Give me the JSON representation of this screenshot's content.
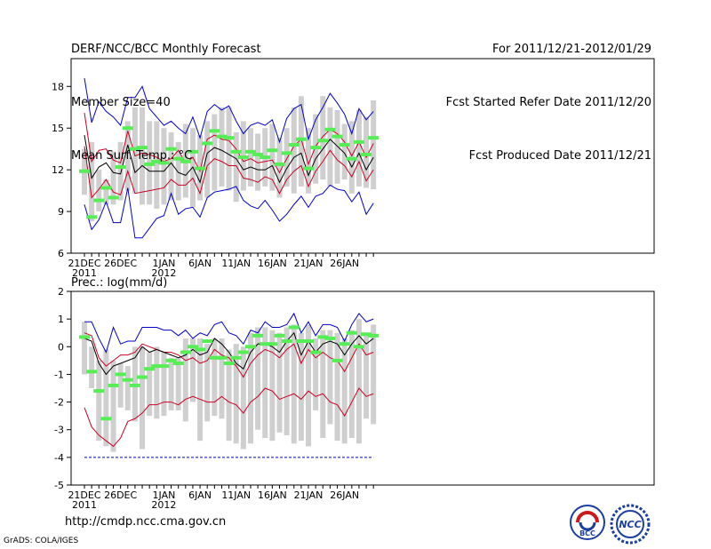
{
  "header": {
    "title": "DERF/NCC/BCC Monthly Forecast",
    "member": "Member Size=40",
    "variable": "Mean Surf. Temp.: °C",
    "period": "For 2011/12/21-2012/01/29",
    "start_date": "Fcst Started Refer Date 2011/12/20",
    "produced_date": "Fcst Produced Date 2011/12/21"
  },
  "footer": {
    "url": "http://cmdp.ncc.cma.gov.cn",
    "credit": "GrADS: COLA/IGES",
    "logo_left_text": "BCC",
    "logo_right_text": "NCC"
  },
  "colors": {
    "max_min": "#0000cc",
    "upper_lower": "#cc0022",
    "mean": "#000000",
    "spread": "#cfcfcf",
    "observed": "#55ee55"
  },
  "chart_data": [
    {
      "type": "box-plume",
      "title": "Mean Surf. Temp.: °C",
      "ylim": [
        6,
        20
      ],
      "yticks": [
        6,
        9,
        12,
        15,
        18
      ],
      "xtick_labels": [
        {
          "day": 1,
          "label": "21DEC",
          "sub": "2011"
        },
        {
          "day": 6,
          "label": "26DEC",
          "sub": ""
        },
        {
          "day": 12,
          "label": "1JAN",
          "sub": "2012"
        },
        {
          "day": 17,
          "label": "6JAN",
          "sub": ""
        },
        {
          "day": 22,
          "label": "11JAN",
          "sub": ""
        },
        {
          "day": 27,
          "label": "16JAN",
          "sub": ""
        },
        {
          "day": 32,
          "label": "21JAN",
          "sub": ""
        },
        {
          "day": 37,
          "label": "26JAN",
          "sub": ""
        }
      ],
      "days": 40,
      "series": {
        "max": [
          18.6,
          15.4,
          16.9,
          16.2,
          15.8,
          15.2,
          17.2,
          17.2,
          18,
          16.4,
          15.8,
          15.2,
          15.5,
          15,
          14.6,
          15.8,
          14.3,
          16.2,
          16.7,
          16.3,
          16.6,
          15.5,
          14.6,
          15.2,
          15.4,
          15.2,
          15.6,
          14,
          15.7,
          16.4,
          16.7,
          14.2,
          15.6,
          16.5,
          17.5,
          16.8,
          16,
          14.6,
          16.4,
          15.6,
          16.2
        ],
        "upper": [
          16.1,
          12.6,
          13.4,
          13.5,
          12.7,
          12.5,
          14.8,
          13,
          13.2,
          13.1,
          12.9,
          12.6,
          12.8,
          13.4,
          12.5,
          12.9,
          11.9,
          14.2,
          14.5,
          14.2,
          14.1,
          13.5,
          12.6,
          12.8,
          12.5,
          12.6,
          12.7,
          11.8,
          12.8,
          13.7,
          14.2,
          12.4,
          13.7,
          14.4,
          14.9,
          14.6,
          14,
          13,
          14,
          12.9,
          13.9
        ],
        "mean": [
          14.5,
          11.4,
          12.2,
          12.5,
          11.8,
          11.7,
          13.8,
          11.8,
          12.3,
          11.9,
          11.9,
          11.9,
          12.5,
          11.8,
          11.6,
          12.2,
          11.1,
          13.2,
          13.6,
          13.4,
          13.1,
          12.8,
          12,
          12.2,
          12,
          12,
          12.3,
          11.1,
          12.1,
          12.9,
          13.2,
          11.6,
          12.8,
          13.5,
          14.2,
          13.7,
          13.2,
          12.2,
          13.2,
          12,
          12.9
        ],
        "lower": [
          13.7,
          10,
          10.6,
          11.3,
          10.4,
          10.2,
          11.9,
          10.3,
          10.4,
          10.5,
          10.6,
          10.7,
          11.3,
          10.9,
          10.9,
          11.4,
          10.3,
          12.3,
          12.8,
          12.6,
          12.3,
          12.3,
          11.4,
          11.3,
          11.1,
          11.5,
          11.3,
          10.3,
          11.3,
          11.9,
          12.3,
          10.8,
          11.9,
          12.6,
          13.4,
          12.7,
          12.3,
          11.5,
          12.6,
          11.2,
          12
        ],
        "min": [
          9.5,
          7.7,
          8.4,
          9.7,
          8.2,
          8.2,
          10.7,
          7.1,
          7.1,
          7.8,
          8.5,
          8.7,
          10.3,
          8.8,
          9.2,
          9.3,
          8.6,
          10,
          10.4,
          10.5,
          10.6,
          10.8,
          9.8,
          9.4,
          9.2,
          9.8,
          9.1,
          8.3,
          8.8,
          9.5,
          10.1,
          9.3,
          10.1,
          10.3,
          10.9,
          10.6,
          10.5,
          9.7,
          10.4,
          8.8,
          9.6
        ],
        "spread_low": [
          10.2,
          8.3,
          9,
          9.5,
          9.5,
          9.8,
          10.5,
          10.3,
          9.5,
          9.5,
          9.2,
          9.5,
          9.8,
          9.8,
          10,
          9.3,
          9.8,
          10,
          10.5,
          10.8,
          10.5,
          9.7,
          10.5,
          10.8,
          10.5,
          10.8,
          10.5,
          10,
          10.8,
          10.3,
          10.8,
          10.3,
          11,
          11.3,
          10.8,
          11,
          11.3,
          10.3,
          10.8,
          10.7,
          10.6
        ],
        "spread_high": [
          13.5,
          14,
          12,
          11.3,
          13.3,
          14,
          15.5,
          16.5,
          16.5,
          15.5,
          15.5,
          15,
          14.7,
          14,
          15.3,
          15,
          14.5,
          15.5,
          16,
          16.5,
          16.5,
          14.7,
          15.5,
          15,
          14.6,
          15,
          15.3,
          14.3,
          15,
          16.5,
          17.3,
          15,
          16,
          17.3,
          16.5,
          16.3,
          15.3,
          15.5,
          16.3,
          15.8,
          17
        ],
        "observed": [
          11.9,
          8.6,
          9.8,
          10.7,
          10,
          12.2,
          15,
          13.5,
          13.6,
          12.4,
          12.6,
          12.5,
          13.5,
          12.8,
          12.6,
          13.3,
          12.1,
          13.9,
          14.8,
          14.4,
          14.3,
          13.3,
          12.9,
          13.3,
          13.1,
          12.9,
          13.4,
          12.4,
          13.2,
          13.8,
          14.2,
          12.1,
          13.6,
          14.1,
          14.9,
          14.4,
          13.8,
          12.8,
          14,
          13.1,
          14.3
        ]
      }
    },
    {
      "type": "box-plume",
      "title": "Prec.: log(mm/d)",
      "ylim": [
        -5,
        2
      ],
      "yticks": [
        -5,
        -4,
        -3,
        -2,
        -1,
        0,
        1,
        2
      ],
      "xtick_labels": [
        {
          "day": 1,
          "label": "21DEC",
          "sub": "2011"
        },
        {
          "day": 6,
          "label": "26DEC",
          "sub": ""
        },
        {
          "day": 12,
          "label": "1JAN",
          "sub": "2012"
        },
        {
          "day": 17,
          "label": "6JAN",
          "sub": ""
        },
        {
          "day": 22,
          "label": "11JAN",
          "sub": ""
        },
        {
          "day": 27,
          "label": "16JAN",
          "sub": ""
        },
        {
          "day": 32,
          "label": "21JAN",
          "sub": ""
        },
        {
          "day": 37,
          "label": "26JAN",
          "sub": ""
        }
      ],
      "days": 40,
      "series": {
        "max": [
          0.9,
          0.9,
          0.3,
          -0.2,
          0.7,
          0.1,
          0.2,
          0.2,
          0.7,
          0.7,
          0.7,
          0.6,
          0.6,
          0.4,
          0.6,
          0.3,
          0.5,
          0.4,
          0.8,
          0.9,
          0.5,
          0.4,
          0.1,
          0.6,
          0.5,
          0.9,
          0.7,
          0.7,
          0.8,
          1.2,
          0.5,
          0.9,
          0.4,
          0.8,
          0.8,
          0.7,
          0.2,
          0.8,
          1.2,
          0.9,
          1
        ],
        "upper": [
          0.5,
          0.4,
          -0.4,
          -0.7,
          -0.5,
          -0.3,
          -0.3,
          -0.2,
          0.1,
          0,
          -0.1,
          -0.2,
          -0.2,
          -0.3,
          -0.5,
          -0.4,
          -0.6,
          -0.5,
          -0.1,
          -0.3,
          -0.4,
          -0.7,
          -1.1,
          -0.6,
          -0.3,
          -0.1,
          -0.2,
          -0.4,
          -0.1,
          0.1,
          -0.6,
          -0.1,
          -0.4,
          -0.2,
          -0.4,
          -0.5,
          -0.9,
          -0.4,
          0.1,
          -0.3,
          -0.2
        ],
        "mean": [
          0.3,
          0.2,
          -0.6,
          -1,
          -0.7,
          -0.6,
          -0.5,
          -0.4,
          0,
          -0.2,
          -0.1,
          -0.2,
          -0.3,
          -0.4,
          -0.3,
          -0.1,
          -0.3,
          -0.2,
          0.3,
          0.1,
          -0.2,
          -0.6,
          -0.8,
          -0.2,
          0.1,
          0.1,
          0,
          -0.2,
          0.2,
          0.5,
          -0.3,
          0.2,
          -0.2,
          0.1,
          0.2,
          0.1,
          -0.3,
          0.1,
          0.4,
          0.1,
          0.3
        ],
        "lower": [
          -2.2,
          -2.9,
          -3.2,
          -3.4,
          -3.6,
          -3.3,
          -2.7,
          -2.6,
          -2.4,
          -2.1,
          -2.1,
          -2,
          -2,
          -2.1,
          -1.9,
          -1.8,
          -1.9,
          -2,
          -2,
          -1.8,
          -2,
          -2.1,
          -2.4,
          -2,
          -1.8,
          -1.5,
          -1.6,
          -1.9,
          -1.8,
          -1.7,
          -1.9,
          -1.6,
          -1.8,
          -1.7,
          -2,
          -2.1,
          -2.5,
          -2,
          -1.5,
          -1.8,
          -1.7
        ],
        "min": [
          -4,
          -4,
          -4,
          -4,
          -4,
          -4,
          -4,
          -4,
          -4,
          -4,
          -4,
          -4,
          -4,
          -4,
          -4,
          -4,
          -4,
          -4,
          -4,
          -4,
          -4,
          -4,
          -4,
          -4,
          -4,
          -4,
          -4,
          -4,
          -4,
          -4,
          -4,
          -4,
          -4,
          -4,
          -4,
          -4,
          -4,
          -4,
          -4,
          -4,
          -4
        ],
        "spread_low": [
          -1,
          -1.5,
          -3.4,
          -3.6,
          -3.8,
          -2.2,
          -2.3,
          -2.7,
          -3.7,
          -2.5,
          -2.6,
          -2.5,
          -2.3,
          -2.3,
          -2.7,
          -2,
          -3.4,
          -2.7,
          -2.5,
          -2.6,
          -3.4,
          -3.5,
          -3.7,
          -3.5,
          -3,
          -3.3,
          -3.4,
          -3.1,
          -3.2,
          -3.5,
          -3.4,
          -3.6,
          -2.3,
          -3.3,
          -2.8,
          -3.4,
          -3.5,
          -3.3,
          -3.5,
          -2.6,
          -2.8
        ],
        "spread_high": [
          0.9,
          0,
          -0.5,
          -0.1,
          -0.5,
          -0.6,
          -0.7,
          0,
          0,
          -0.2,
          0,
          -0.2,
          -0.4,
          -0.4,
          0.3,
          0.3,
          0.3,
          0.1,
          0.3,
          0.3,
          -0.1,
          0.1,
          0,
          0.5,
          0.7,
          0.7,
          0.6,
          0.5,
          0.7,
          0.8,
          0.5,
          0.8,
          0.3,
          0.6,
          0.6,
          0.5,
          0.3,
          0.6,
          1,
          0.5,
          0.8
        ],
        "observed": [
          0.35,
          -0.9,
          -1.6,
          -2.6,
          -1.4,
          -1,
          -1.2,
          -1.4,
          -1.1,
          -0.8,
          -0.7,
          -0.7,
          -0.5,
          -0.6,
          -0.2,
          0,
          -0.1,
          0.2,
          -0.4,
          -0.4,
          -0.6,
          -0.4,
          -0.2,
          0,
          0.4,
          0.1,
          0.1,
          0.4,
          0.2,
          0.7,
          0.2,
          0.2,
          -0.2,
          0.35,
          0.3,
          -0.5,
          0.1,
          0.5,
          0,
          0.45,
          0.4
        ]
      }
    }
  ]
}
